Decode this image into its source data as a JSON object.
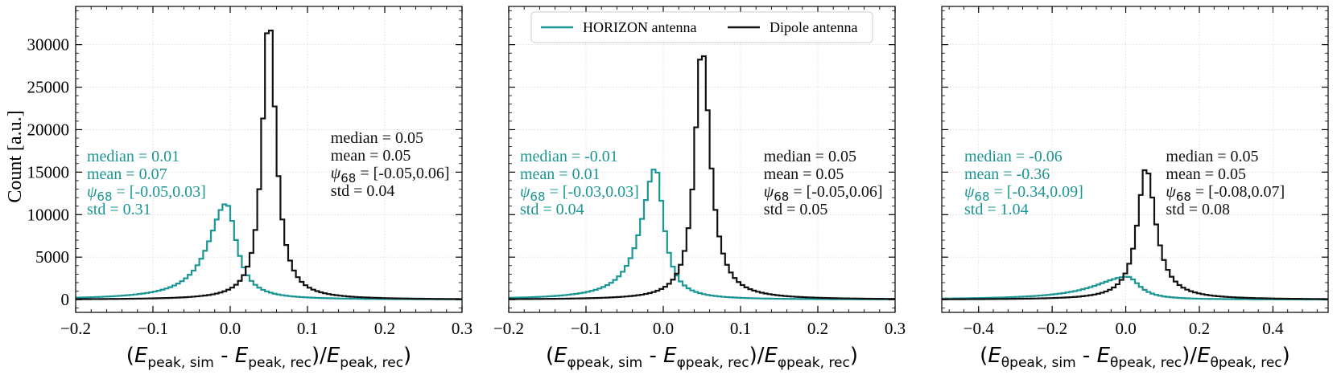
{
  "colors": {
    "horizon": "#1a9694",
    "dipole": "#111111",
    "grid": "#d9d9d9"
  },
  "ylabel": "Count [a.u.]",
  "legend": {
    "horizon_label": "HORIZON antenna",
    "dipole_label": "Dipole antenna"
  },
  "chart_data": [
    {
      "type": "histogram",
      "xlim": [
        -0.2,
        0.3
      ],
      "ylim": [
        -1500,
        34500
      ],
      "grid": true,
      "xticks": [
        -0.2,
        -0.1,
        0.0,
        0.1,
        0.2,
        0.3
      ],
      "xtick_labels": [
        "−0.2",
        "−0.1",
        "0.0",
        "0.1",
        "0.2",
        "0.3"
      ],
      "yticks": [
        0,
        5000,
        10000,
        15000,
        20000,
        25000,
        30000
      ],
      "ytick_labels": [
        "0",
        "5000",
        "10000",
        "15000",
        "20000",
        "25000",
        "30000"
      ],
      "xlabel": {
        "prefix": "(",
        "e1": "E",
        "s1": "peak, sim",
        "mid": " - ",
        "e2": "E",
        "s2": "peak, rec",
        "div": ")/",
        "e3": "E",
        "s3": "peak, rec",
        "suffix": ")"
      },
      "series": [
        {
          "key": "horizon",
          "peak_x": -0.005,
          "peak_y": 11300,
          "sigma_l": 0.028,
          "sigma_r": 0.016,
          "bin": 0.005
        },
        {
          "key": "dipole",
          "peak_x": 0.05,
          "peak_y": 33300,
          "sigma_l": 0.01,
          "sigma_r": 0.011,
          "bin": 0.005
        }
      ],
      "stats": {
        "horizon": [
          "median = 0.01",
          "mean = 0.07",
          "ψ68 = [-0.05,0.03]",
          "std = 0.31"
        ],
        "dipole": [
          "median = 0.05",
          "mean = 0.05",
          "ψ68 = [-0.05,0.06]",
          "std = 0.04"
        ]
      }
    },
    {
      "type": "histogram",
      "xlim": [
        -0.2,
        0.3
      ],
      "ylim": [
        -1500,
        34500
      ],
      "grid": true,
      "legend_position": "top-center",
      "xticks": [
        -0.2,
        -0.1,
        0.0,
        0.1,
        0.2,
        0.3
      ],
      "xtick_labels": [
        "−0.2",
        "−0.1",
        "0.0",
        "0.1",
        "0.2",
        "0.3"
      ],
      "xlabel": {
        "prefix": "(",
        "e1": "E",
        "s1": "φpeak, sim",
        "mid": " - ",
        "e2": "E",
        "s2": "φpeak, rec",
        "div": ")/",
        "e3": "E",
        "s3": "φpeak, rec",
        "suffix": ")"
      },
      "series": [
        {
          "key": "horizon",
          "peak_x": -0.01,
          "peak_y": 15500,
          "sigma_l": 0.022,
          "sigma_r": 0.013,
          "bin": 0.005
        },
        {
          "key": "dipole",
          "peak_x": 0.05,
          "peak_y": 29700,
          "sigma_l": 0.011,
          "sigma_r": 0.013,
          "bin": 0.005
        }
      ],
      "stats": {
        "horizon": [
          "median = -0.01",
          "mean = 0.01",
          "ψ68 = [-0.03,0.03]",
          "std = 0.04"
        ],
        "dipole": [
          "median = 0.05",
          "mean = 0.05",
          "ψ68 = [-0.05,0.06]",
          "std = 0.05"
        ]
      }
    },
    {
      "type": "histogram",
      "xlim": [
        -0.5,
        0.55
      ],
      "ylim": [
        -1500,
        34500
      ],
      "grid": true,
      "xticks": [
        -0.4,
        -0.2,
        0.0,
        0.2,
        0.4
      ],
      "xtick_labels": [
        "−0.4",
        "−0.2",
        "0.0",
        "0.2",
        "0.4"
      ],
      "xlabel": {
        "prefix": "(",
        "e1": "E",
        "s1": "θpeak, sim",
        "mid": " - ",
        "e2": "E",
        "s2": "θpeak, rec",
        "div": ")/",
        "e3": "E",
        "s3": "θpeak, rec",
        "suffix": ")"
      },
      "series": [
        {
          "key": "horizon",
          "peak_x": 0.005,
          "peak_y": 2700,
          "sigma_l": 0.11,
          "sigma_r": 0.04,
          "bin": 0.0105
        },
        {
          "key": "dipole",
          "peak_x": 0.055,
          "peak_y": 15500,
          "sigma_l": 0.028,
          "sigma_r": 0.032,
          "bin": 0.0105
        }
      ],
      "stats": {
        "horizon": [
          "median = -0.06",
          "mean = -0.36",
          "ψ68 = [-0.34,0.09]",
          "std = 1.04"
        ],
        "dipole": [
          "median = 0.05",
          "mean = 0.05",
          "ψ68 = [-0.08,0.07]",
          "std = 0.08"
        ]
      }
    }
  ]
}
